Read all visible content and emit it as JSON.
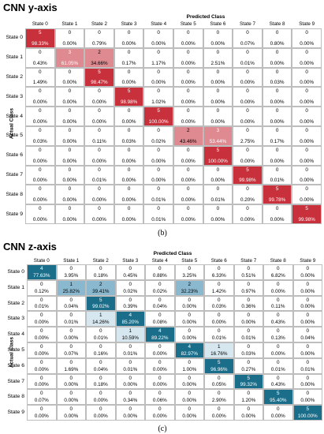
{
  "chart_data": [
    {
      "type": "heatmap",
      "title": "CNN y-axis",
      "xlabel": "Predicted Class",
      "ylabel": "Actual Class",
      "caption": "(b)",
      "colormap": "red",
      "categories": [
        "State 0",
        "State 1",
        "State 2",
        "State 3",
        "State 4",
        "State 5",
        "State 6",
        "State 7",
        "State 8",
        "State 9"
      ],
      "counts": [
        [
          "5",
          "0",
          "0",
          "0",
          "0",
          "0",
          "0",
          "0",
          "0",
          "0"
        ],
        [
          "0",
          "3",
          "2",
          "0",
          "0",
          "0",
          "0",
          "0",
          "0",
          "0"
        ],
        [
          "0",
          "0",
          "5",
          "0",
          "0",
          "0",
          "0",
          "0",
          "0",
          "0"
        ],
        [
          "0",
          "0",
          "0",
          "5",
          "0",
          "0",
          "0",
          "0",
          "0",
          "0"
        ],
        [
          "0",
          "0",
          "0",
          "0",
          "5",
          "0",
          "0",
          "0",
          "0",
          "0"
        ],
        [
          "0",
          "0",
          "0",
          "0",
          "0",
          "2",
          "3",
          "0",
          "0",
          "0"
        ],
        [
          "0",
          "0",
          "0",
          "0",
          "0",
          "0",
          "5",
          "0",
          "0",
          "0"
        ],
        [
          "0",
          "0",
          "0",
          "0",
          "0",
          "0",
          "0",
          "5",
          "0",
          "0"
        ],
        [
          "0",
          "0",
          "0",
          "0",
          "0",
          "0",
          "0",
          "0",
          "5",
          "0"
        ],
        [
          "0",
          "0",
          "0",
          "0",
          "0",
          "0",
          "0",
          "0",
          "0",
          "5"
        ]
      ],
      "percentages": [
        [
          98.33,
          0.0,
          0.79,
          0.0,
          0.0,
          0.0,
          0.0,
          0.07,
          0.8,
          0.0
        ],
        [
          0.43,
          61.05,
          34.66,
          0.17,
          1.17,
          0.0,
          2.51,
          0.01,
          0.0,
          0.0
        ],
        [
          1.49,
          0.0,
          98.47,
          0.0,
          0.0,
          0.0,
          0.0,
          0.0,
          0.03,
          0.0
        ],
        [
          0.0,
          0.0,
          0.0,
          98.98,
          1.02,
          0.0,
          0.0,
          0.0,
          0.0,
          0.0
        ],
        [
          0.0,
          0.0,
          0.0,
          0.0,
          100.0,
          0.0,
          0.0,
          0.0,
          0.0,
          0.0
        ],
        [
          0.03,
          0.0,
          0.11,
          0.03,
          0.02,
          43.46,
          53.44,
          2.75,
          0.17,
          0.0
        ],
        [
          0.0,
          0.0,
          0.0,
          0.0,
          0.0,
          0.0,
          100.0,
          0.0,
          0.0,
          0.0
        ],
        [
          0.0,
          0.0,
          0.01,
          0.0,
          0.0,
          0.0,
          0.0,
          99.98,
          0.01,
          0.0
        ],
        [
          0.0,
          0.0,
          0.0,
          0.0,
          0.01,
          0.0,
          0.01,
          0.2,
          99.78,
          0.0
        ],
        [
          0.0,
          0.0,
          0.0,
          0.0,
          0.01,
          0.0,
          0.0,
          0.0,
          0.0,
          99.98
        ]
      ]
    },
    {
      "type": "heatmap",
      "title": "CNN z-axis",
      "xlabel": "Predicted Class",
      "ylabel": "Actual Class",
      "caption": "(c)",
      "colormap": "blue",
      "categories": [
        "State 0",
        "State 1",
        "State 2",
        "State 3",
        "State 4",
        "State 5",
        "State 6",
        "State 7",
        "State 8",
        "State 9"
      ],
      "counts": [
        [
          "4",
          "0",
          "0",
          "0",
          "0",
          "0",
          "0",
          "0",
          "0",
          "0"
        ],
        [
          "0",
          "1",
          "2",
          "0",
          "0",
          "2",
          "0",
          "0",
          "0",
          "0"
        ],
        [
          "0",
          "0",
          "5",
          "0",
          "0",
          "0",
          "0",
          "0",
          "0",
          "0"
        ],
        [
          "0",
          "0",
          "1",
          "4",
          "0",
          "0",
          "0",
          "0",
          "0",
          "0"
        ],
        [
          "0",
          "0",
          "0",
          "1",
          "4",
          "0",
          "0",
          "0",
          "0",
          "0"
        ],
        [
          "0",
          "0",
          "0",
          "0",
          "0",
          "4",
          "1",
          "0",
          "0",
          "0"
        ],
        [
          "0",
          "0",
          "0",
          "0",
          "0",
          "0",
          "5",
          "0",
          "0",
          "0"
        ],
        [
          "0",
          "0",
          "0",
          "0",
          "0",
          "0",
          "0",
          "5",
          "0",
          "0"
        ],
        [
          "0",
          "0",
          "0",
          "0",
          "0",
          "0",
          "0",
          "0",
          "5",
          "0"
        ],
        [
          "0",
          "0",
          "0",
          "0",
          "0",
          "0",
          "0",
          "0",
          "0",
          "5"
        ]
      ],
      "percentages": [
        [
          77.63,
          3.95,
          0.18,
          0.45,
          0.88,
          3.25,
          6.33,
          0.51,
          6.82,
          0.0
        ],
        [
          0.12,
          25.82,
          39.41,
          0.02,
          0.02,
          32.23,
          1.42,
          0.97,
          0.0,
          0.0
        ],
        [
          0.01,
          0.04,
          99.02,
          0.39,
          0.04,
          0.0,
          0.03,
          0.36,
          0.11,
          0.0
        ],
        [
          0.0,
          0.01,
          14.26,
          85.2,
          0.08,
          0.0,
          0.0,
          0.0,
          0.43,
          0.0
        ],
        [
          0.0,
          0.0,
          0.01,
          10.59,
          89.22,
          0.0,
          0.01,
          0.01,
          0.13,
          0.04
        ],
        [
          0.0,
          0.07,
          0.16,
          0.01,
          0.0,
          82.97,
          16.76,
          0.03,
          0.0,
          0.0
        ],
        [
          0.0,
          1.69,
          0.04,
          0.01,
          0.0,
          1.0,
          96.96,
          0.27,
          0.01,
          0.01
        ],
        [
          0.0,
          0.0,
          0.18,
          0.0,
          0.0,
          0.0,
          0.05,
          99.32,
          0.43,
          0.0
        ],
        [
          0.07,
          0.0,
          0.0,
          0.34,
          0.06,
          0.0,
          2.9,
          1.2,
          95.4,
          0.0
        ],
        [
          0.0,
          0.0,
          0.0,
          0.0,
          0.0,
          0.0,
          0.0,
          0.0,
          0.0,
          100.0
        ]
      ]
    }
  ],
  "colors": {
    "red_high": "#c8303b",
    "red_mid": "#de8a90",
    "red_low": "#f3d2d4",
    "blue_high": "#1a6e8a",
    "blue_mid": "#8ab8cf",
    "blue_low": "#d6e7f0",
    "cell_bg": "#ffffff"
  }
}
